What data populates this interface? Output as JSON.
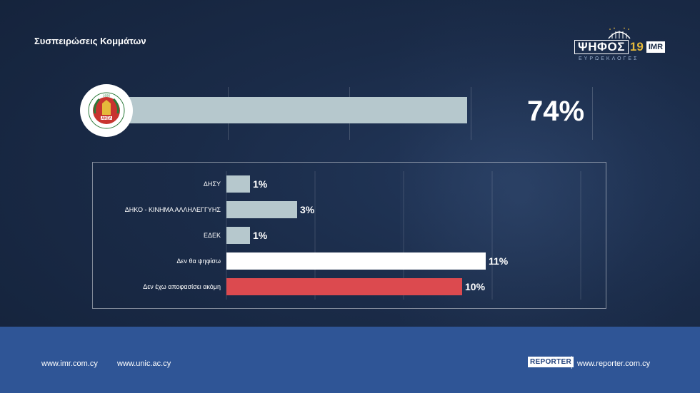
{
  "header": {
    "title": "Συσπειρώσεις Κομμάτων"
  },
  "logo": {
    "word": "ΨΗΦΟΣ",
    "year": "19",
    "brand": "IMR",
    "subtitle": "ΕΥΡΩΕΚΛΟΓΕΣ"
  },
  "top_party": {
    "emblem_text": "ΑΚΕΛ",
    "emblem_year": "1926",
    "value": 74,
    "value_label": "74%",
    "color": "#b6c8cd"
  },
  "chart_data": {
    "type": "bar",
    "orientation": "horizontal",
    "categories": [
      "ΔΗΣΥ",
      "ΔΗΚΟ - ΚΙΝΗΜΑ ΑΛΛΗΛΕΓΓΥΗΣ",
      "ΕΔΕΚ",
      "Δεν θα ψηφίσω",
      "Δεν έχω αποφασίσει ακόμη"
    ],
    "values": [
      1,
      3,
      1,
      11,
      10
    ],
    "value_labels": [
      "1%",
      "3%",
      "1%",
      "11%",
      "10%"
    ],
    "colors": [
      "#b6c8cd",
      "#b6c8cd",
      "#b6c8cd",
      "#ffffff",
      "#dc4a4f"
    ],
    "xlim": [
      0,
      17.5
    ],
    "grid": true
  },
  "footer": {
    "links": [
      "www.imr.com.cy",
      "www.unic.ac.cy"
    ],
    "reporter_badge": "REPORTER",
    "reporter_link": "www.reporter.com.cy"
  }
}
